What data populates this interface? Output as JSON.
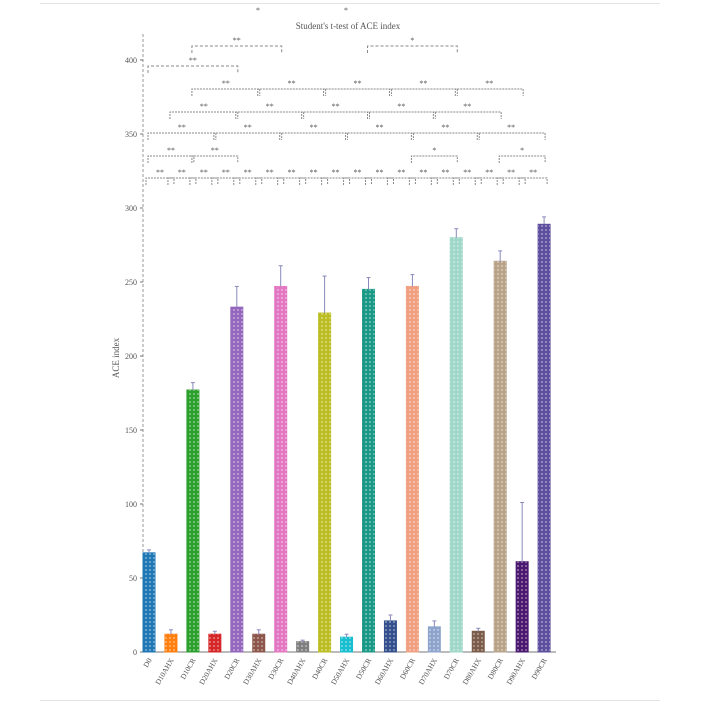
{
  "chart_data": {
    "type": "bar",
    "title": "Student's t-test of ACE index",
    "xlabel": "",
    "ylabel": "ACE index",
    "ylim": [
      0,
      420
    ],
    "yticks": [
      0,
      50,
      100,
      150,
      200,
      250,
      300,
      350,
      400
    ],
    "grid": false,
    "categories": [
      "D0",
      "D10AHX",
      "D10CR",
      "D20AHX",
      "D20CR",
      "D30AHX",
      "D30CR",
      "D40AHX",
      "D40CR",
      "D50AHX",
      "D50CR",
      "D60AHX",
      "D60CR",
      "D70AHX",
      "D70CR",
      "D80AHX",
      "D80CR",
      "D90AHX",
      "D90CR"
    ],
    "values": [
      67,
      12,
      177,
      12,
      233,
      12,
      247,
      7,
      229,
      10,
      245,
      21,
      247,
      17,
      280,
      14,
      264,
      61,
      289
    ],
    "errors": [
      2,
      3,
      5,
      2,
      14,
      3,
      14,
      1,
      25,
      2,
      8,
      4,
      8,
      4,
      6,
      2,
      7,
      40,
      5
    ],
    "colors": [
      "#1f77b4",
      "#ff7f0e",
      "#2ca02c",
      "#d62728",
      "#9467bd",
      "#8c564b",
      "#e377c2",
      "#7f7f7f",
      "#bcbd22",
      "#17becf",
      "#1a9a86",
      "#34508c",
      "#f0a080",
      "#8ea4cc",
      "#9fd8c8",
      "#7a5c48",
      "#b9a388",
      "#4a1870",
      "#5d4f9e"
    ],
    "bar_pattern": "dotted",
    "significance": [
      {
        "from": 0,
        "to": 1,
        "label": "**",
        "level": 1
      },
      {
        "from": 1,
        "to": 2,
        "label": "**",
        "level": 1
      },
      {
        "from": 2,
        "to": 3,
        "label": "**",
        "level": 1
      },
      {
        "from": 3,
        "to": 4,
        "label": "**",
        "level": 1
      },
      {
        "from": 4,
        "to": 5,
        "label": "**",
        "level": 1
      },
      {
        "from": 5,
        "to": 6,
        "label": "**",
        "level": 1
      },
      {
        "from": 6,
        "to": 7,
        "label": "**",
        "level": 1
      },
      {
        "from": 7,
        "to": 8,
        "label": "**",
        "level": 1
      },
      {
        "from": 8,
        "to": 9,
        "label": "**",
        "level": 1
      },
      {
        "from": 9,
        "to": 10,
        "label": "**",
        "level": 1
      },
      {
        "from": 10,
        "to": 11,
        "label": "**",
        "level": 1
      },
      {
        "from": 11,
        "to": 12,
        "label": "**",
        "level": 1
      },
      {
        "from": 12,
        "to": 13,
        "label": "**",
        "level": 1
      },
      {
        "from": 13,
        "to": 14,
        "label": "**",
        "level": 1
      },
      {
        "from": 14,
        "to": 15,
        "label": "**",
        "level": 1
      },
      {
        "from": 15,
        "to": 16,
        "label": "**",
        "level": 1
      },
      {
        "from": 16,
        "to": 17,
        "label": "**",
        "level": 1
      },
      {
        "from": 17,
        "to": 18,
        "label": "**",
        "level": 1
      },
      {
        "from": 0,
        "to": 2,
        "label": "**",
        "level": 2
      },
      {
        "from": 2,
        "to": 4,
        "label": "**",
        "level": 2
      },
      {
        "from": 12,
        "to": 14,
        "label": "*",
        "level": 2
      },
      {
        "from": 16,
        "to": 18,
        "label": "*",
        "level": 2
      },
      {
        "from": 0,
        "to": 3,
        "label": "**",
        "level": 3
      },
      {
        "from": 3,
        "to": 6,
        "label": "**",
        "level": 3
      },
      {
        "from": 6,
        "to": 9,
        "label": "**",
        "level": 3
      },
      {
        "from": 9,
        "to": 12,
        "label": "**",
        "level": 3
      },
      {
        "from": 12,
        "to": 15,
        "label": "**",
        "level": 3
      },
      {
        "from": 15,
        "to": 18,
        "label": "**",
        "level": 3
      },
      {
        "from": 1,
        "to": 4,
        "label": "**",
        "level": 4
      },
      {
        "from": 4,
        "to": 7,
        "label": "**",
        "level": 4
      },
      {
        "from": 7,
        "to": 10,
        "label": "**",
        "level": 4
      },
      {
        "from": 10,
        "to": 13,
        "label": "**",
        "level": 4
      },
      {
        "from": 13,
        "to": 16,
        "label": "**",
        "level": 4
      },
      {
        "from": 2,
        "to": 5,
        "label": "**",
        "level": 5
      },
      {
        "from": 5,
        "to": 8,
        "label": "**",
        "level": 5
      },
      {
        "from": 8,
        "to": 11,
        "label": "**",
        "level": 5
      },
      {
        "from": 11,
        "to": 14,
        "label": "**",
        "level": 5
      },
      {
        "from": 14,
        "to": 17,
        "label": "**",
        "level": 5
      },
      {
        "from": 0,
        "to": 4,
        "label": "**",
        "level": 6
      },
      {
        "from": 2,
        "to": 6,
        "label": "**",
        "level": 7
      },
      {
        "from": 10,
        "to": 14,
        "label": "*",
        "level": 7
      }
    ],
    "stray_marks": [
      "*",
      "*"
    ]
  }
}
